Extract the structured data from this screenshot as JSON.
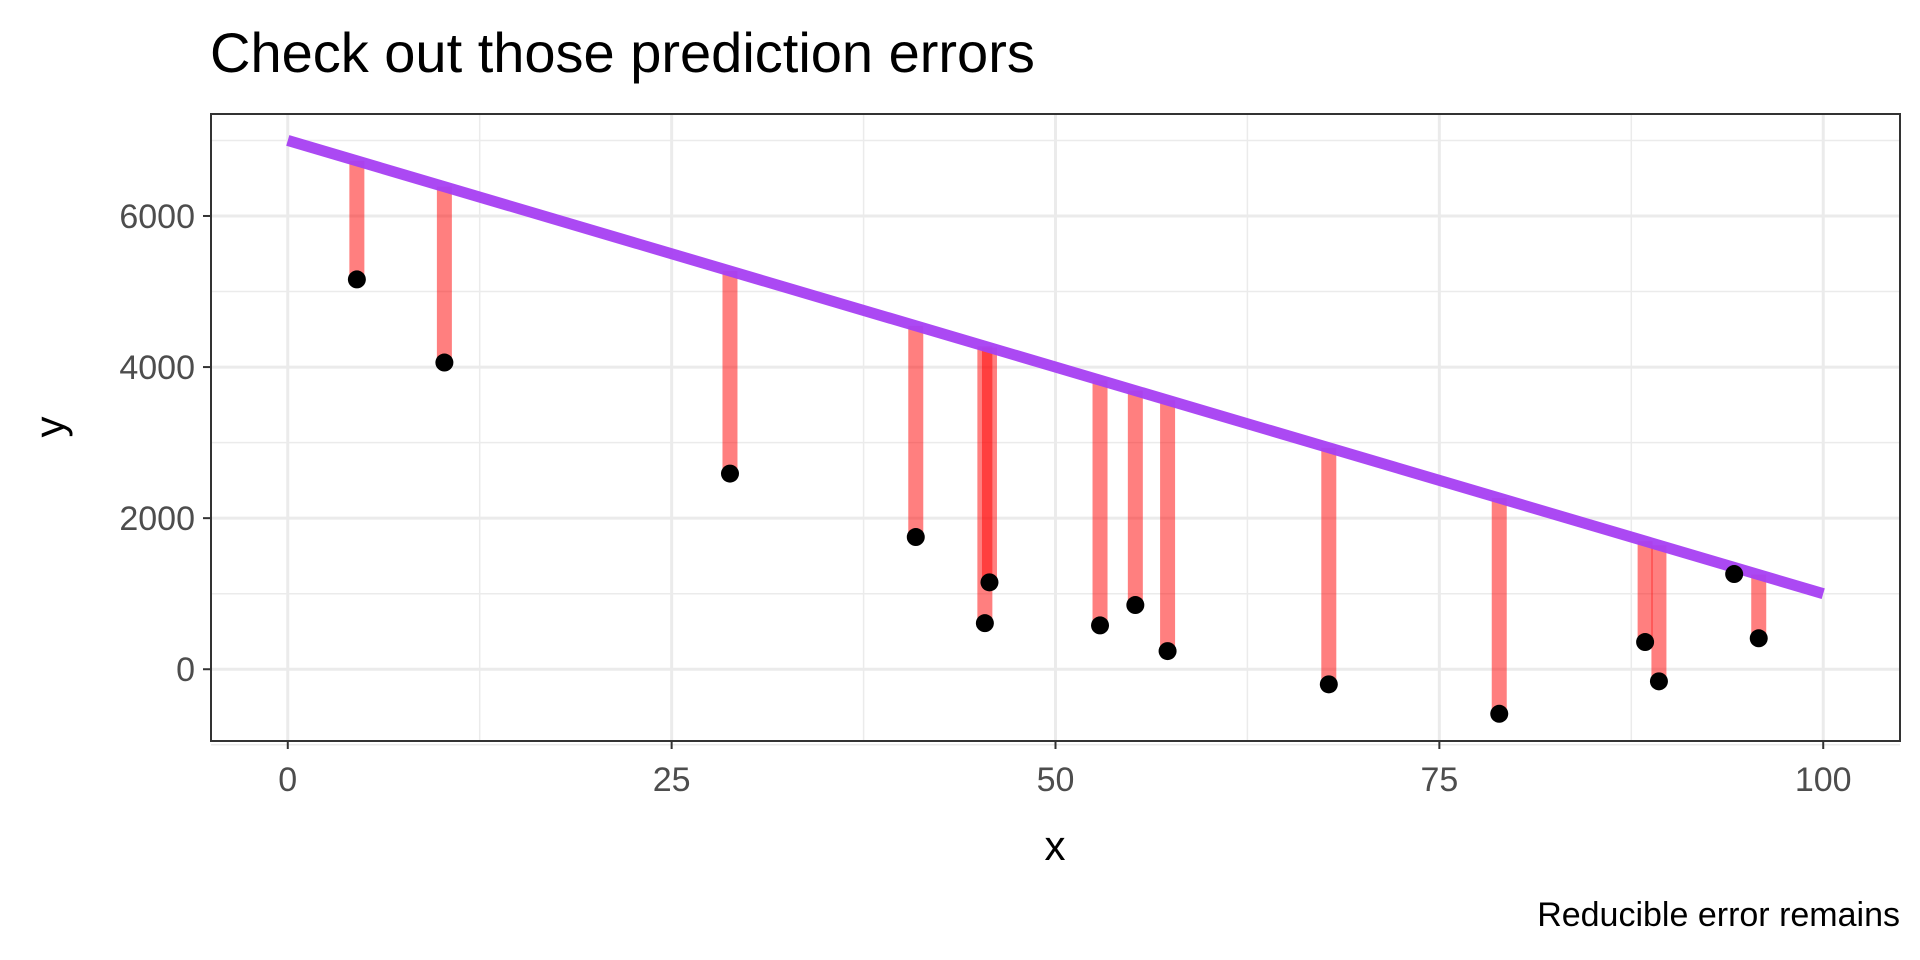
{
  "chart_data": {
    "type": "scatter",
    "title": "Check out those prediction errors",
    "xlabel": "x",
    "ylabel": "y",
    "caption": "Reducible error remains",
    "xlim": [
      -5,
      105
    ],
    "ylim": [
      -950,
      7350
    ],
    "x_ticks": [
      0,
      25,
      50,
      75,
      100
    ],
    "x_tick_labels": [
      "0",
      "25",
      "50",
      "75",
      "100"
    ],
    "y_ticks": [
      0,
      2000,
      4000,
      6000
    ],
    "y_tick_labels": [
      "0",
      "2000",
      "4000",
      "6000"
    ],
    "grid": true,
    "fit_line": {
      "x": [
        0,
        100
      ],
      "y": [
        7000,
        1000
      ],
      "color": "#a63ff2"
    },
    "residual_color": "#ff0000",
    "point_color": "#000000",
    "points": [
      {
        "x": 4.5,
        "y": 5160
      },
      {
        "x": 10.2,
        "y": 4060
      },
      {
        "x": 28.8,
        "y": 2590
      },
      {
        "x": 40.9,
        "y": 1750
      },
      {
        "x": 45.4,
        "y": 610
      },
      {
        "x": 45.7,
        "y": 1150
      },
      {
        "x": 52.9,
        "y": 580
      },
      {
        "x": 55.2,
        "y": 850
      },
      {
        "x": 57.3,
        "y": 240
      },
      {
        "x": 67.8,
        "y": -200
      },
      {
        "x": 78.9,
        "y": -590
      },
      {
        "x": 88.4,
        "y": 360
      },
      {
        "x": 89.3,
        "y": -160
      },
      {
        "x": 94.2,
        "y": 1260
      },
      {
        "x": 95.8,
        "y": 410
      }
    ]
  }
}
